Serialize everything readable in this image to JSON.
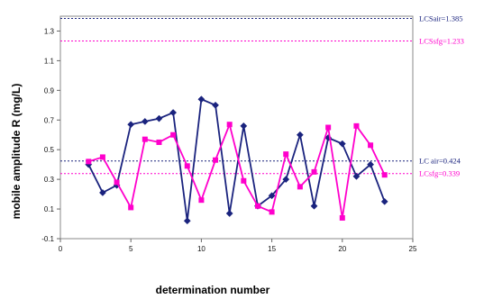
{
  "chart_data": {
    "type": "line",
    "xlabel": "determination number",
    "ylabel": "mobile amplitude R (mg/L)",
    "xlim": [
      0,
      25
    ],
    "ylim": [
      -0.1,
      1.4
    ],
    "x_ticks": [
      0,
      5,
      10,
      15,
      20,
      25
    ],
    "y_ticks": [
      -0.1,
      0.1,
      0.3,
      0.5,
      0.7,
      0.9,
      1.1,
      1.3
    ],
    "grid": false,
    "colors": {
      "navy": "#1a237e",
      "magenta": "#ff00cc"
    },
    "series": [
      {
        "color": "#1a237e",
        "marker": "diamond",
        "x": [
          2,
          3,
          4,
          5,
          6,
          7,
          8,
          9,
          10,
          11,
          12,
          13,
          14,
          15,
          16,
          17,
          18,
          19,
          20,
          21,
          22,
          23
        ],
        "values": [
          0.4,
          0.21,
          0.26,
          0.67,
          0.69,
          0.71,
          0.75,
          0.02,
          0.84,
          0.8,
          0.07,
          0.66,
          0.12,
          0.19,
          0.3,
          0.6,
          0.12,
          0.58,
          0.54,
          0.32,
          0.4,
          0.15
        ]
      },
      {
        "color": "#ff00cc",
        "marker": "square",
        "x": [
          2,
          3,
          4,
          5,
          6,
          7,
          8,
          9,
          10,
          11,
          12,
          13,
          14,
          15,
          16,
          17,
          18,
          19,
          20,
          21,
          22,
          23
        ],
        "values": [
          0.42,
          0.45,
          0.28,
          0.11,
          0.57,
          0.55,
          0.6,
          0.39,
          0.16,
          0.43,
          0.67,
          0.29,
          0.12,
          0.08,
          0.47,
          0.25,
          0.35,
          0.65,
          0.04,
          0.66,
          0.53,
          0.33
        ]
      }
    ],
    "reference_lines": [
      {
        "label": "LCSair=1.385",
        "value": 1.385,
        "color": "#1a237e"
      },
      {
        "label": "LCSsfg=1.233",
        "value": 1.233,
        "color": "#ff00cc"
      },
      {
        "label": "LC air=0.424",
        "value": 0.424,
        "color": "#1a237e"
      },
      {
        "label": "LCsfg=0.339",
        "value": 0.339,
        "color": "#ff00cc"
      }
    ]
  }
}
